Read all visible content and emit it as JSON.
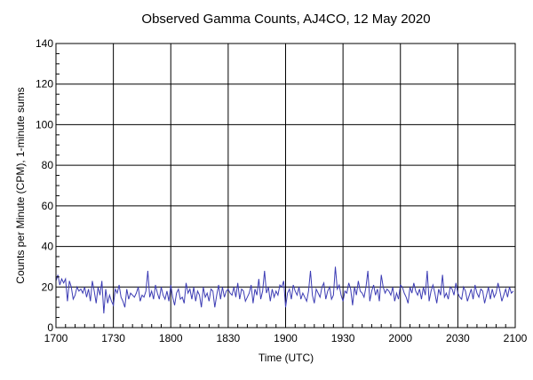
{
  "chart_data": {
    "type": "line",
    "title": "Observed Gamma Counts, AJ4CO, 12 May 2020",
    "xlabel": "Time (UTC)",
    "ylabel": "Counts per Minute (CPM), 1-minute sums",
    "xlim": [
      0,
      240
    ],
    "ylim": [
      0,
      140
    ],
    "xticks": [
      {
        "minutes": 0,
        "label": "1700"
      },
      {
        "minutes": 30,
        "label": "1730"
      },
      {
        "minutes": 60,
        "label": "1800"
      },
      {
        "minutes": 90,
        "label": "1830"
      },
      {
        "minutes": 120,
        "label": "1900"
      },
      {
        "minutes": 150,
        "label": "1930"
      },
      {
        "minutes": 180,
        "label": "2000"
      },
      {
        "minutes": 210,
        "label": "2030"
      },
      {
        "minutes": 240,
        "label": "2100"
      }
    ],
    "yticks": [
      0,
      20,
      40,
      60,
      80,
      100,
      120,
      140
    ],
    "grid": true,
    "line_color": "#3c3cb4",
    "series": [
      {
        "x_start_minute": 0,
        "x_step_minutes": 1,
        "values": [
          23,
          26,
          21,
          24,
          22,
          24,
          13,
          23,
          20,
          14,
          16,
          20,
          18,
          19,
          17,
          20,
          15,
          19,
          13,
          23,
          18,
          12,
          20,
          16,
          23,
          7,
          19,
          12,
          16,
          13,
          11,
          19,
          17,
          21,
          15,
          13,
          10,
          19,
          14,
          17,
          16,
          15,
          17,
          20,
          13,
          16,
          15,
          18,
          28,
          15,
          18,
          14,
          21,
          17,
          14,
          20,
          16,
          14,
          18,
          13,
          21,
          15,
          11,
          17,
          19,
          14,
          15,
          12,
          22,
          17,
          19,
          14,
          20,
          13,
          18,
          16,
          10,
          20,
          15,
          17,
          13,
          19,
          18,
          10,
          16,
          21,
          14,
          20,
          15,
          18,
          19,
          17,
          16,
          20,
          15,
          22,
          14,
          19,
          18,
          13,
          15,
          17,
          21,
          12,
          19,
          16,
          24,
          14,
          18,
          28,
          17,
          20,
          13,
          19,
          15,
          18,
          16,
          21,
          20,
          23,
          10,
          17,
          19,
          14,
          21,
          18,
          16,
          20,
          14,
          17,
          15,
          13,
          18,
          28,
          16,
          12,
          19,
          17,
          15,
          20,
          22,
          14,
          18,
          20,
          14,
          16,
          30,
          19,
          21,
          16,
          13,
          18,
          17,
          22,
          19,
          11,
          20,
          16,
          23,
          18,
          17,
          15,
          20,
          28,
          13,
          18,
          21,
          16,
          19,
          13,
          26,
          20,
          17,
          19,
          18,
          16,
          20,
          13,
          17,
          14,
          21,
          20,
          17,
          15,
          12,
          20,
          17,
          22,
          18,
          16,
          19,
          14,
          20,
          16,
          28,
          13,
          18,
          21,
          17,
          12,
          19,
          16,
          26,
          15,
          17,
          14,
          20,
          19,
          16,
          22,
          17,
          15,
          14,
          20,
          18,
          13,
          16,
          19,
          14,
          21,
          17,
          15,
          19,
          18,
          12,
          16,
          20,
          14,
          19,
          15,
          17,
          22,
          18,
          13,
          16,
          19,
          15,
          20,
          17,
          18
        ]
      }
    ]
  }
}
